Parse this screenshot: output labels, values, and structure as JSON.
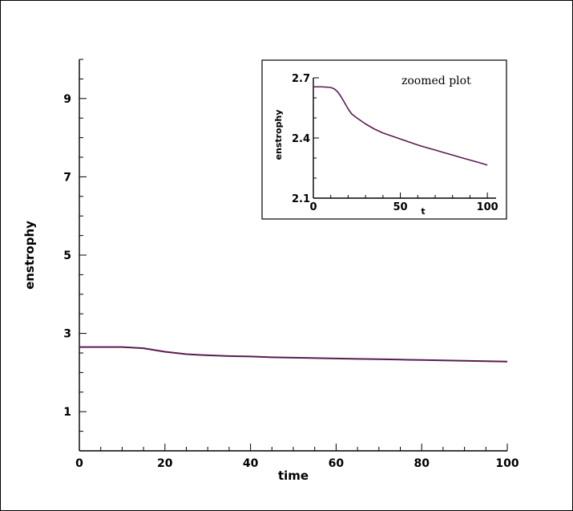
{
  "chart_data": [
    {
      "type": "line",
      "title": "",
      "xlabel": "time",
      "ylabel": "enstrophy",
      "xlim": [
        0,
        100
      ],
      "ylim": [
        0,
        10
      ],
      "xticks": [
        "0",
        "20",
        "40",
        "60",
        "80",
        "100"
      ],
      "yticks": [
        "1",
        "3",
        "5",
        "7",
        "9"
      ],
      "grid": false,
      "line_color": "#5a1a52",
      "series": [
        {
          "x": [
            0,
            5,
            10,
            15,
            20,
            25,
            30,
            35,
            40,
            45,
            50,
            55,
            60,
            65,
            70,
            75,
            80,
            85,
            90,
            95,
            100
          ],
          "y": [
            2.65,
            2.65,
            2.65,
            2.62,
            2.53,
            2.47,
            2.44,
            2.42,
            2.41,
            2.39,
            2.38,
            2.37,
            2.36,
            2.35,
            2.34,
            2.33,
            2.32,
            2.31,
            2.3,
            2.29,
            2.28
          ]
        }
      ]
    },
    {
      "type": "line",
      "title": "",
      "xlabel": "t",
      "ylabel": "enstrophy",
      "annotation": "zoomed plot",
      "xlim": [
        0,
        105
      ],
      "ylim": [
        2.1,
        2.7
      ],
      "xticks": [
        "0",
        "50",
        "100"
      ],
      "yticks": [
        "2.1",
        "2.4",
        "2.7"
      ],
      "grid": false,
      "line_color": "#5a1a52",
      "series": [
        {
          "x": [
            0,
            5,
            10,
            12,
            14,
            16,
            18,
            20,
            22,
            25,
            30,
            35,
            40,
            45,
            50,
            55,
            60,
            65,
            70,
            75,
            80,
            85,
            90,
            95,
            100
          ],
          "y": [
            2.655,
            2.655,
            2.652,
            2.645,
            2.63,
            2.605,
            2.575,
            2.545,
            2.52,
            2.5,
            2.47,
            2.445,
            2.425,
            2.41,
            2.395,
            2.38,
            2.365,
            2.352,
            2.34,
            2.327,
            2.315,
            2.302,
            2.29,
            2.278,
            2.265
          ]
        }
      ]
    }
  ]
}
